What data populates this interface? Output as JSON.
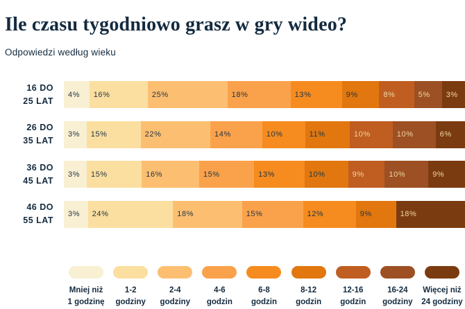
{
  "colors": {
    "background": "#FFFFFF",
    "heading_text": "#132A3E",
    "value_text_dark": "#243543",
    "value_text_light": "#EFD7A3"
  },
  "chart_data": {
    "type": "bar",
    "stacked": true,
    "orientation": "horizontal",
    "unit": "%",
    "title": "Ile czasu tygodniowo grasz w gry wideo?",
    "subtitle": "Odpowiedzi według wieku",
    "legend_position": "bottom",
    "grid": false,
    "categories": [
      {
        "line1": "Mniej niż",
        "line2": "1 godzinę",
        "color": "#F9EFD2",
        "value_text": "#243543"
      },
      {
        "line1": "1-2",
        "line2": "godziny",
        "color": "#FBDFA1",
        "value_text": "#243543"
      },
      {
        "line1": "2-4",
        "line2": "godziny",
        "color": "#FCBF72",
        "value_text": "#243543"
      },
      {
        "line1": "4-6",
        "line2": "godzin",
        "color": "#FAA24B",
        "value_text": "#243543"
      },
      {
        "line1": "6-8",
        "line2": "godzin",
        "color": "#F68C1F",
        "value_text": "#243543"
      },
      {
        "line1": "8-12",
        "line2": "godzin",
        "color": "#E1770E",
        "value_text": "#243543"
      },
      {
        "line1": "12-16",
        "line2": "godzin",
        "color": "#C05D20",
        "value_text": "#EFD7A3"
      },
      {
        "line1": "16-24",
        "line2": "godziny",
        "color": "#9C5023",
        "value_text": "#EFD7A3"
      },
      {
        "line1": "Więcej niż",
        "line2": "24 godziny",
        "color": "#7B3B10",
        "value_text": "#EFD7A3"
      }
    ],
    "rows": [
      {
        "label_line1": "16 DO",
        "label_line2": "25 LAT",
        "segments": [
          {
            "category": 0,
            "value": 4
          },
          {
            "category": 1,
            "value": 16
          },
          {
            "category": 2,
            "value": 25
          },
          {
            "category": 3,
            "value": 18
          },
          {
            "category": 4,
            "value": 13
          },
          {
            "category": 5,
            "value": 9
          },
          {
            "category": 6,
            "value": 8
          },
          {
            "category": 7,
            "value": 5
          },
          {
            "category": 8,
            "value": 3
          }
        ]
      },
      {
        "label_line1": "26 DO",
        "label_line2": "35 LAT",
        "segments": [
          {
            "category": 0,
            "value": 3
          },
          {
            "category": 1,
            "value": 15
          },
          {
            "category": 2,
            "value": 22
          },
          {
            "category": 3,
            "value": 14
          },
          {
            "category": 4,
            "value": 10
          },
          {
            "category": 5,
            "value": 11
          },
          {
            "category": 6,
            "value": 10
          },
          {
            "category": 7,
            "value": 10
          },
          {
            "category": 8,
            "value": 6
          }
        ]
      },
      {
        "label_line1": "36 DO",
        "label_line2": "45 LAT",
        "segments": [
          {
            "category": 0,
            "value": 3
          },
          {
            "category": 1,
            "value": 15
          },
          {
            "category": 2,
            "value": 16
          },
          {
            "category": 3,
            "value": 15
          },
          {
            "category": 4,
            "value": 13
          },
          {
            "category": 5,
            "value": 10
          },
          {
            "category": 6,
            "value": 9
          },
          {
            "category": 7,
            "value": 10
          },
          {
            "category": 8,
            "value": 9
          }
        ]
      },
      {
        "label_line1": "46 DO",
        "label_line2": "55 LAT",
        "segments": [
          {
            "category": 0,
            "value": 3
          },
          {
            "category": 1,
            "value": 24
          },
          {
            "category": 2,
            "value": 18
          },
          {
            "category": 3,
            "value": 15
          },
          {
            "category": 4,
            "value": 12
          },
          {
            "category": 5,
            "value": 9
          },
          {
            "category": 8,
            "value": 18
          }
        ]
      }
    ]
  }
}
